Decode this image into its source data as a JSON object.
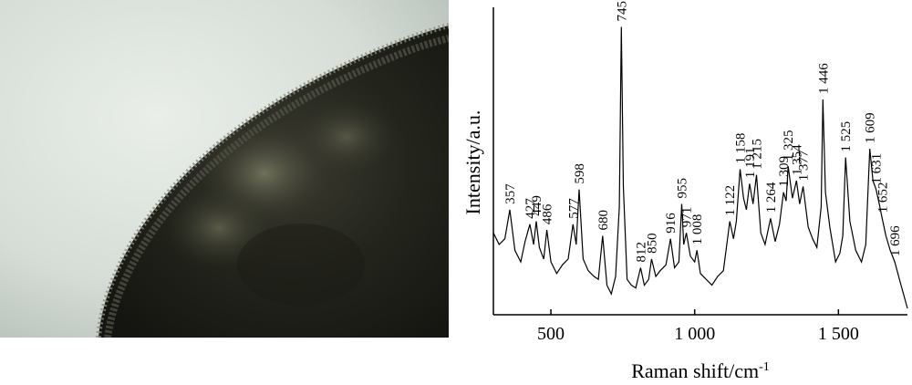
{
  "micrograph": {
    "description_icon": "tissue-micrograph-icon"
  },
  "chart_data": {
    "type": "line",
    "xlabel": "Raman shift/cm",
    "xlabel_sup": "-1",
    "ylabel": "Intensity/a.u.",
    "xlim": [
      300,
      1740
    ],
    "ylim": [
      0,
      1
    ],
    "xticks": [
      500,
      1000,
      1500
    ],
    "xtick_labels": [
      "500",
      "1 000",
      "1 500"
    ],
    "grid": false,
    "line_color": "#000000",
    "peaks": [
      {
        "x": 357,
        "label": "357",
        "y": 0.34
      },
      {
        "x": 427,
        "label": "427",
        "y": 0.29
      },
      {
        "x": 449,
        "label": "449",
        "y": 0.3
      },
      {
        "x": 486,
        "label": "486",
        "y": 0.27
      },
      {
        "x": 577,
        "label": "577",
        "y": 0.29
      },
      {
        "x": 598,
        "label": "598",
        "y": 0.41
      },
      {
        "x": 680,
        "label": "680",
        "y": 0.25
      },
      {
        "x": 745,
        "label": "745",
        "y": 0.97
      },
      {
        "x": 812,
        "label": "812",
        "y": 0.14
      },
      {
        "x": 850,
        "label": "850",
        "y": 0.17
      },
      {
        "x": 916,
        "label": "916",
        "y": 0.24
      },
      {
        "x": 971,
        "label": "971",
        "y": 0.26
      },
      {
        "x": 955,
        "label": "955",
        "y": 0.36
      },
      {
        "x": 1008,
        "label": "1 008",
        "y": 0.2
      },
      {
        "x": 1122,
        "label": "1 122",
        "y": 0.3
      },
      {
        "x": 1158,
        "label": "1 158",
        "y": 0.48
      },
      {
        "x": 1191,
        "label": "1 191",
        "y": 0.43
      },
      {
        "x": 1215,
        "label": "1 215",
        "y": 0.46
      },
      {
        "x": 1264,
        "label": "1 264",
        "y": 0.31
      },
      {
        "x": 1309,
        "label": "1 309",
        "y": 0.4
      },
      {
        "x": 1325,
        "label": "1 325",
        "y": 0.49
      },
      {
        "x": 1354,
        "label": "1 354",
        "y": 0.44
      },
      {
        "x": 1377,
        "label": "1 377",
        "y": 0.42
      },
      {
        "x": 1446,
        "label": "1 446",
        "y": 0.72
      },
      {
        "x": 1525,
        "label": "1 525",
        "y": 0.52
      },
      {
        "x": 1609,
        "label": "1 609",
        "y": 0.55
      },
      {
        "x": 1631,
        "label": "1 631",
        "y": 0.41
      },
      {
        "x": 1652,
        "label": "1 652",
        "y": 0.31
      },
      {
        "x": 1696,
        "label": "1 696",
        "y": 0.16
      }
    ],
    "series": [
      {
        "x": [
          300,
          320,
          340,
          357,
          375,
          395,
          410,
          427,
          440,
          449,
          460,
          475,
          486,
          500,
          520,
          540,
          560,
          577,
          588,
          598,
          612,
          630,
          650,
          665,
          680,
          695,
          710,
          725,
          738,
          745,
          752,
          765,
          780,
          795,
          812,
          825,
          840,
          850,
          865,
          880,
          900,
          916,
          930,
          945,
          955,
          962,
          971,
          985,
          1000,
          1008,
          1020,
          1040,
          1060,
          1080,
          1100,
          1122,
          1135,
          1145,
          1158,
          1170,
          1180,
          1191,
          1203,
          1215,
          1230,
          1245,
          1264,
          1280,
          1295,
          1309,
          1318,
          1325,
          1340,
          1354,
          1365,
          1377,
          1395,
          1410,
          1425,
          1440,
          1446,
          1455,
          1470,
          1490,
          1505,
          1515,
          1525,
          1540,
          1560,
          1580,
          1595,
          1609,
          1620,
          1631,
          1642,
          1652,
          1665,
          1680,
          1696,
          1715,
          1740
        ],
        "y": [
          0.26,
          0.22,
          0.24,
          0.34,
          0.2,
          0.16,
          0.23,
          0.29,
          0.22,
          0.3,
          0.21,
          0.17,
          0.27,
          0.16,
          0.12,
          0.15,
          0.17,
          0.29,
          0.22,
          0.41,
          0.17,
          0.13,
          0.11,
          0.1,
          0.25,
          0.08,
          0.05,
          0.11,
          0.35,
          0.97,
          0.42,
          0.1,
          0.08,
          0.07,
          0.14,
          0.08,
          0.1,
          0.17,
          0.11,
          0.13,
          0.15,
          0.24,
          0.14,
          0.16,
          0.36,
          0.22,
          0.26,
          0.18,
          0.16,
          0.2,
          0.12,
          0.1,
          0.08,
          0.11,
          0.13,
          0.3,
          0.24,
          0.3,
          0.48,
          0.38,
          0.34,
          0.43,
          0.36,
          0.46,
          0.26,
          0.22,
          0.31,
          0.23,
          0.29,
          0.4,
          0.37,
          0.49,
          0.38,
          0.44,
          0.36,
          0.42,
          0.28,
          0.24,
          0.21,
          0.35,
          0.72,
          0.4,
          0.28,
          0.16,
          0.19,
          0.25,
          0.52,
          0.3,
          0.2,
          0.16,
          0.22,
          0.55,
          0.44,
          0.41,
          0.36,
          0.31,
          0.25,
          0.2,
          0.16,
          0.09,
          0.0
        ]
      }
    ]
  }
}
